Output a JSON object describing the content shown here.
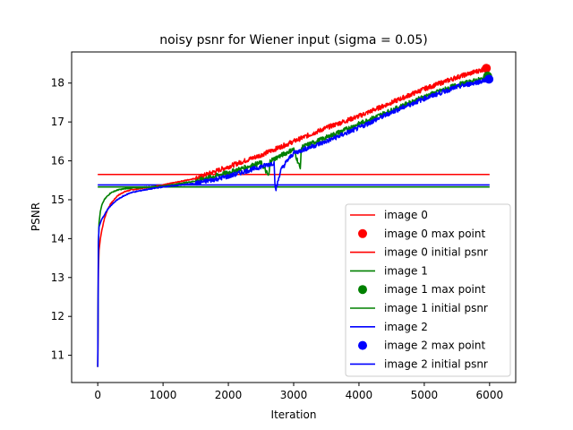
{
  "chart_data": {
    "type": "line",
    "title": "noisy psnr for Wiener input (sigma = 0.05)",
    "xlabel": "Iteration",
    "ylabel": "PSNR",
    "xlim": [
      -400,
      6400
    ],
    "ylim": [
      10.3,
      18.8
    ],
    "xticks": [
      0,
      1000,
      2000,
      3000,
      4000,
      5000,
      6000
    ],
    "yticks": [
      11,
      12,
      13,
      14,
      15,
      16,
      17,
      18
    ],
    "grid": false,
    "legend_position": "lower-right",
    "colors": {
      "image0": "#ff0000",
      "image1": "#008000",
      "image2": "#0000ff"
    },
    "series": [
      {
        "name": "image 0",
        "kind": "line",
        "color": "#ff0000",
        "x": [
          0,
          10,
          20,
          40,
          60,
          100,
          150,
          200,
          300,
          400,
          500,
          700,
          1000,
          1500,
          2000,
          2500,
          3000,
          3500,
          4000,
          4500,
          5000,
          5500,
          6000
        ],
        "y": [
          10.7,
          13.2,
          13.7,
          14.0,
          14.2,
          14.5,
          14.75,
          14.9,
          15.1,
          15.2,
          15.25,
          15.3,
          15.38,
          15.55,
          15.85,
          16.15,
          16.5,
          16.85,
          17.15,
          17.5,
          17.85,
          18.15,
          18.4
        ]
      },
      {
        "name": "image 0 max point",
        "kind": "point",
        "color": "#ff0000",
        "x": 5950,
        "y": 18.38
      },
      {
        "name": "image 0 initial psnr",
        "kind": "hline",
        "color": "#ff0000",
        "value": 15.65,
        "xrange": [
          0,
          6000
        ]
      },
      {
        "name": "image 1",
        "kind": "line",
        "color": "#008000",
        "x": [
          0,
          10,
          20,
          40,
          60,
          100,
          150,
          200,
          300,
          400,
          500,
          700,
          1000,
          1500,
          2000,
          2500,
          2620,
          2640,
          3000,
          3100,
          3120,
          3500,
          4000,
          4500,
          5000,
          5500,
          6000
        ],
        "y": [
          10.7,
          13.8,
          14.4,
          14.7,
          14.85,
          15.0,
          15.1,
          15.18,
          15.25,
          15.28,
          15.3,
          15.32,
          15.35,
          15.48,
          15.7,
          15.95,
          15.6,
          16.0,
          16.3,
          15.8,
          16.35,
          16.6,
          16.95,
          17.3,
          17.65,
          17.95,
          18.15
        ]
      },
      {
        "name": "image 1 max point",
        "kind": "point",
        "color": "#008000",
        "x": 5970,
        "y": 18.18
      },
      {
        "name": "image 1 initial psnr",
        "kind": "hline",
        "color": "#008000",
        "value": 15.33,
        "xrange": [
          0,
          6000
        ]
      },
      {
        "name": "image 2",
        "kind": "line",
        "color": "#0000ff",
        "x": [
          0,
          10,
          20,
          40,
          60,
          100,
          150,
          200,
          300,
          400,
          500,
          700,
          1000,
          1500,
          2000,
          2500,
          2700,
          2720,
          2800,
          2900,
          3000,
          3500,
          4000,
          4500,
          5000,
          5500,
          6000
        ],
        "y": [
          10.7,
          13.9,
          14.3,
          14.4,
          14.5,
          14.6,
          14.75,
          14.85,
          15.0,
          15.1,
          15.18,
          15.25,
          15.33,
          15.42,
          15.6,
          15.85,
          15.95,
          15.2,
          15.75,
          16.0,
          16.2,
          16.5,
          16.85,
          17.25,
          17.6,
          17.9,
          18.1
        ]
      },
      {
        "name": "image 2 max point",
        "kind": "point",
        "color": "#0000ff",
        "x": 5990,
        "y": 18.1
      },
      {
        "name": "image 2 initial psnr",
        "kind": "hline",
        "color": "#0000ff",
        "value": 15.38,
        "xrange": [
          0,
          6000
        ]
      }
    ]
  }
}
